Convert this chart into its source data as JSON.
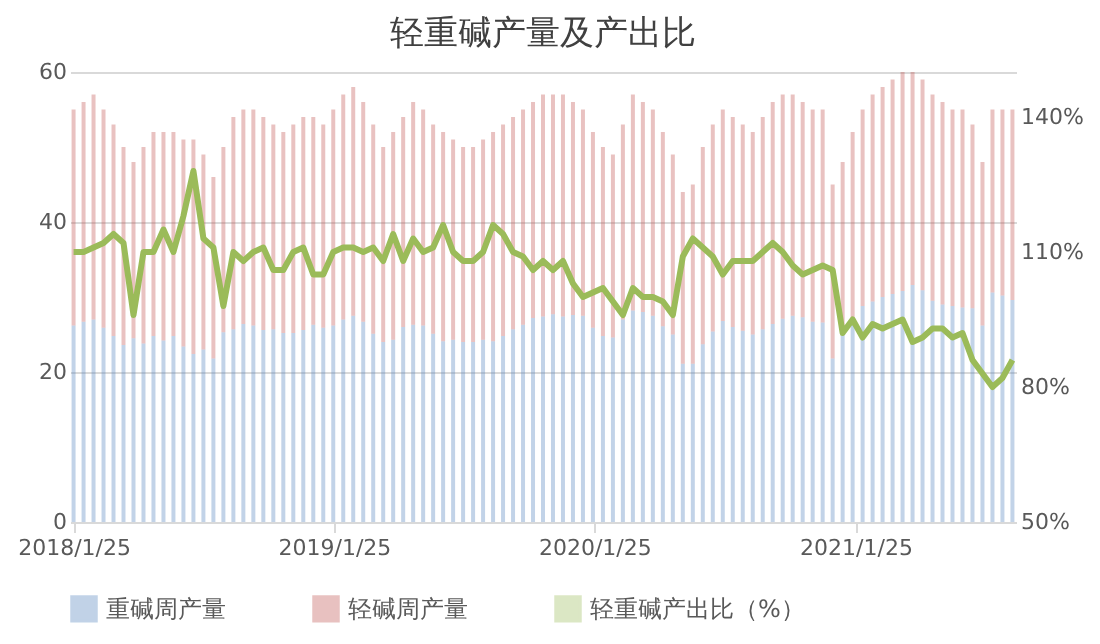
{
  "chart_data": {
    "type": "bar",
    "stacked": true,
    "title": "轻重碱产量及产出比",
    "x": [
      "2018-01-25",
      "2018-02-08",
      "2018-02-22",
      "2018-03-08",
      "2018-03-22",
      "2018-04-05",
      "2018-04-19",
      "2018-05-03",
      "2018-05-17",
      "2018-05-31",
      "2018-06-14",
      "2018-06-28",
      "2018-07-12",
      "2018-07-26",
      "2018-08-09",
      "2018-08-23",
      "2018-09-06",
      "2018-09-20",
      "2018-10-04",
      "2018-10-18",
      "2018-11-01",
      "2018-11-15",
      "2018-11-29",
      "2018-12-13",
      "2018-12-27",
      "2019-01-10",
      "2019-01-24",
      "2019-02-07",
      "2019-02-21",
      "2019-03-07",
      "2019-03-21",
      "2019-04-04",
      "2019-04-18",
      "2019-05-02",
      "2019-05-16",
      "2019-05-30",
      "2019-06-13",
      "2019-06-27",
      "2019-07-11",
      "2019-07-25",
      "2019-08-08",
      "2019-08-22",
      "2019-09-05",
      "2019-09-19",
      "2019-10-03",
      "2019-10-17",
      "2019-10-31",
      "2019-11-14",
      "2019-11-28",
      "2019-12-12",
      "2019-12-26",
      "2020-01-09",
      "2020-01-23",
      "2020-02-06",
      "2020-02-20",
      "2020-03-05",
      "2020-03-19",
      "2020-04-02",
      "2020-04-16",
      "2020-04-30",
      "2020-05-14",
      "2020-05-28",
      "2020-06-11",
      "2020-06-25",
      "2020-07-09",
      "2020-07-23",
      "2020-08-06",
      "2020-08-20",
      "2020-09-03",
      "2020-09-17",
      "2020-10-01",
      "2020-10-15",
      "2020-10-29",
      "2020-11-12",
      "2020-11-26",
      "2020-12-10",
      "2020-12-24",
      "2021-01-07",
      "2021-01-21",
      "2021-02-04",
      "2021-02-18",
      "2021-03-04",
      "2021-03-18",
      "2021-04-01",
      "2021-04-15",
      "2021-04-29",
      "2021-05-13",
      "2021-05-27",
      "2021-06-10",
      "2021-06-24",
      "2021-07-08",
      "2021-07-22",
      "2021-08-05",
      "2021-08-19",
      "2021-09-02"
    ],
    "series": [
      {
        "name": "重碱周产量",
        "color": "#4f81bd",
        "values": [
          26.2,
          26.7,
          27.0,
          25.9,
          24.8,
          23.6,
          24.5,
          23.8,
          24.8,
          24.2,
          24.8,
          23.4,
          22.4,
          23.0,
          21.8,
          25.3,
          25.7,
          26.4,
          26.2,
          25.6,
          25.7,
          25.2,
          25.2,
          25.6,
          26.3,
          25.9,
          26.2,
          27.0,
          27.5,
          26.7,
          25.1,
          24.0,
          24.3,
          26.0,
          26.3,
          26.2,
          25.1,
          24.1,
          24.3,
          24.0,
          24.0,
          24.3,
          24.1,
          24.8,
          25.7,
          26.3,
          27.2,
          27.4,
          27.7,
          27.4,
          27.6,
          27.5,
          25.9,
          24.8,
          24.6,
          27.0,
          28.2,
          28.0,
          27.5,
          26.1,
          25.0,
          21.1,
          21.1,
          23.7,
          25.4,
          26.8,
          26.0,
          25.5,
          25.0,
          25.7,
          26.4,
          27.1,
          27.5,
          27.3,
          26.7,
          26.6,
          21.8,
          25.0,
          26.7,
          28.8,
          29.4,
          30.0,
          30.4,
          30.8,
          31.6,
          30.9,
          29.5,
          29.0,
          28.8,
          28.6,
          28.5,
          26.2,
          30.6,
          30.2,
          29.6
        ]
      },
      {
        "name": "轻碱周产量",
        "color": "#c0504d",
        "values": [
          28.8,
          29.3,
          30.0,
          29.1,
          28.2,
          26.4,
          23.5,
          26.2,
          27.2,
          27.8,
          27.2,
          27.6,
          28.6,
          26.0,
          24.2,
          24.7,
          28.3,
          28.6,
          28.8,
          28.4,
          27.3,
          26.8,
          27.8,
          28.4,
          27.7,
          27.1,
          28.8,
          30.0,
          30.5,
          29.3,
          27.9,
          26.0,
          27.7,
          28.0,
          29.7,
          28.8,
          27.9,
          27.9,
          26.7,
          26.0,
          26.0,
          26.7,
          27.9,
          28.2,
          28.3,
          28.7,
          28.8,
          29.6,
          29.3,
          29.6,
          28.4,
          27.5,
          26.1,
          25.2,
          24.4,
          26.0,
          28.8,
          28.0,
          27.5,
          25.9,
          24.0,
          22.9,
          23.9,
          26.3,
          27.6,
          28.2,
          28.0,
          27.5,
          27.0,
          28.3,
          29.6,
          29.9,
          29.5,
          28.7,
          28.3,
          28.4,
          23.2,
          23.0,
          25.3,
          26.2,
          27.6,
          28.0,
          28.6,
          29.2,
          28.4,
          28.1,
          27.5,
          27.0,
          26.2,
          26.4,
          24.5,
          21.8,
          24.4,
          24.8,
          25.4
        ]
      },
      {
        "name": "轻重碱产出比（%）",
        "type": "line",
        "axis": "y2",
        "color": "#9bbb59",
        "values": [
          110,
          110,
          111,
          112,
          114,
          112,
          96,
          110,
          110,
          115,
          110,
          118,
          128,
          113,
          111,
          98,
          110,
          108,
          110,
          111,
          106,
          106,
          110,
          111,
          105,
          105,
          110,
          111,
          111,
          110,
          111,
          108,
          114,
          108,
          113,
          110,
          111,
          116,
          110,
          108,
          108,
          110,
          116,
          114,
          110,
          109,
          106,
          108,
          106,
          108,
          103,
          100,
          101,
          102,
          99,
          96,
          102,
          100,
          100,
          99,
          96,
          109,
          113,
          111,
          109,
          105,
          108,
          108,
          108,
          110,
          112,
          110,
          107,
          105,
          106,
          107,
          106,
          92,
          95,
          91,
          94,
          93,
          94,
          95,
          90,
          91,
          93,
          93,
          91,
          92,
          86,
          83,
          80,
          82,
          86
        ]
      }
    ],
    "xlim": [
      "2018-01-20",
      "2021-09-07"
    ],
    "xticks": [
      {
        "value": "2018-01-25",
        "label": "2018/1/25"
      },
      {
        "value": "2019-01-25",
        "label": "2019/1/25"
      },
      {
        "value": "2020-01-25",
        "label": "2020/1/25"
      },
      {
        "value": "2021-01-25",
        "label": "2021/1/25"
      }
    ],
    "ylim": [
      0,
      60
    ],
    "yticks": [
      0,
      20,
      40,
      60
    ],
    "y2lim": [
      50,
      150
    ],
    "y2ticks": [
      {
        "value": 50,
        "label": "50%"
      },
      {
        "value": 80,
        "label": "80%"
      },
      {
        "value": 110,
        "label": "110%"
      },
      {
        "value": 140,
        "label": "140%"
      }
    ],
    "grid": "y",
    "legend": "bottom"
  }
}
